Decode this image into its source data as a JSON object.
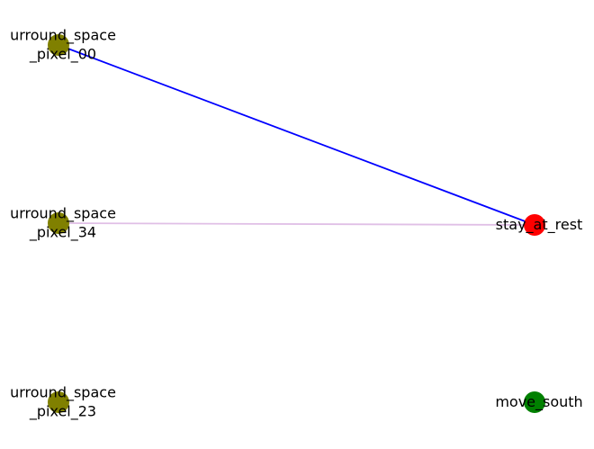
{
  "graph": {
    "nodes": [
      {
        "id": "n0",
        "label_lines": [
          "urround_space",
          "_pixel_00"
        ],
        "color": "#808000",
        "group": "left"
      },
      {
        "id": "n1",
        "label_lines": [
          "urround_space",
          "_pixel_34"
        ],
        "color": "#808000",
        "group": "left"
      },
      {
        "id": "n2",
        "label_lines": [
          "urround_space",
          "_pixel_23"
        ],
        "color": "#808000",
        "group": "left"
      },
      {
        "id": "n3",
        "label_lines": [
          "stay_at_rest"
        ],
        "color": "#ff0000",
        "group": "right"
      },
      {
        "id": "n4",
        "label_lines": [
          "move_south"
        ],
        "color": "#008000",
        "group": "right"
      }
    ],
    "edges": [
      {
        "source": "n0",
        "target": "n3",
        "color": "#0000ff"
      },
      {
        "source": "n1",
        "target": "n3",
        "color": "#e0bfe6"
      }
    ]
  }
}
